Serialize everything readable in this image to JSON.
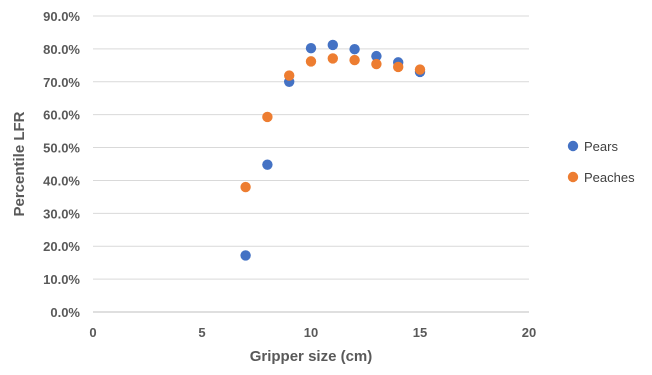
{
  "chart_data": {
    "type": "scatter",
    "title": "",
    "xlabel": "Gripper size (cm)",
    "ylabel": "Percentile LFR",
    "xlim": [
      0,
      20
    ],
    "ylim": [
      0,
      90
    ],
    "x_ticks": [
      0,
      5,
      10,
      15,
      20
    ],
    "x_tick_labels": [
      "0",
      "5",
      "10",
      "15",
      "20"
    ],
    "y_ticks": [
      0,
      10,
      20,
      30,
      40,
      50,
      60,
      70,
      80,
      90
    ],
    "y_tick_labels": [
      "0.0%",
      "10.0%",
      "20.0%",
      "30.0%",
      "40.0%",
      "50.0%",
      "60.0%",
      "70.0%",
      "80.0%",
      "90.0%"
    ],
    "grid": true,
    "legend_position": "right",
    "series": [
      {
        "name": "Pears",
        "color": "#4472C4",
        "points": [
          {
            "x": 7,
            "y": 17.2
          },
          {
            "x": 8,
            "y": 44.8
          },
          {
            "x": 9,
            "y": 70.0
          },
          {
            "x": 10,
            "y": 80.2
          },
          {
            "x": 11,
            "y": 81.2
          },
          {
            "x": 12,
            "y": 79.9
          },
          {
            "x": 13,
            "y": 77.8
          },
          {
            "x": 14,
            "y": 75.9
          },
          {
            "x": 15,
            "y": 73.0
          }
        ]
      },
      {
        "name": "Peaches",
        "color": "#ED7D31",
        "points": [
          {
            "x": 7,
            "y": 38.0
          },
          {
            "x": 8,
            "y": 59.3
          },
          {
            "x": 9,
            "y": 71.9
          },
          {
            "x": 10,
            "y": 76.2
          },
          {
            "x": 11,
            "y": 77.1
          },
          {
            "x": 12,
            "y": 76.6
          },
          {
            "x": 13,
            "y": 75.4
          },
          {
            "x": 14,
            "y": 74.5
          },
          {
            "x": 15,
            "y": 73.7
          }
        ]
      }
    ]
  }
}
